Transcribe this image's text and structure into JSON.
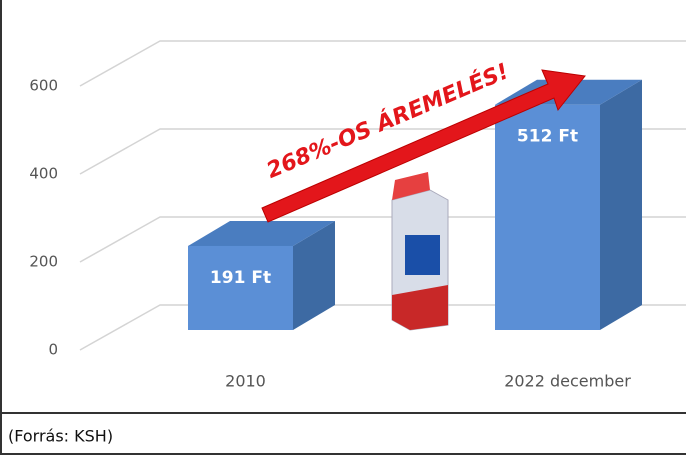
{
  "chart_data": {
    "type": "bar",
    "categories": [
      "2010",
      "2022 december"
    ],
    "values": [
      191,
      512
    ],
    "value_labels": [
      "191 Ft",
      "512 Ft"
    ],
    "color": "#5b8fd6",
    "ylim": [
      0,
      600
    ],
    "yticks": [
      0,
      200,
      400,
      600
    ],
    "grid": true,
    "annotation": "268%-OS ÁREMELÉS!",
    "source": "(Forrás: KSH)"
  }
}
